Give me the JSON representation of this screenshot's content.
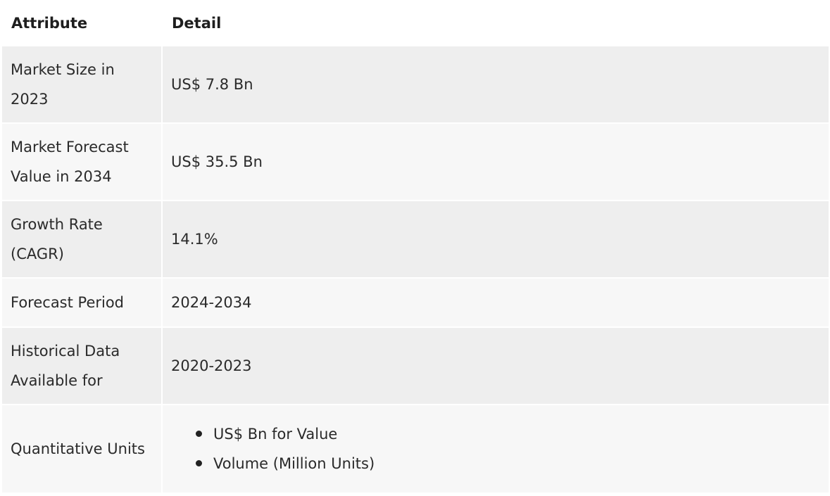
{
  "table": {
    "headers": {
      "attribute": "Attribute",
      "detail": "Detail"
    },
    "rows": [
      {
        "attribute": "Market Size in 2023",
        "detail": "US$ 7.8 Bn"
      },
      {
        "attribute": "Market Forecast Value in 2034",
        "detail": "US$ 35.5 Bn"
      },
      {
        "attribute": "Growth Rate (CAGR)",
        "detail": "14.1%"
      },
      {
        "attribute": "Forecast Period",
        "detail": "2024-2034"
      },
      {
        "attribute": "Historical Data Available for",
        "detail": "2020-2023"
      },
      {
        "attribute": "Quantitative Units",
        "detail_items": [
          "US$ Bn for Value",
          "Volume (Million Units)"
        ]
      }
    ]
  },
  "colors": {
    "row_odd": "#eeeeee",
    "row_even": "#f7f7f7",
    "text": "#222222"
  }
}
